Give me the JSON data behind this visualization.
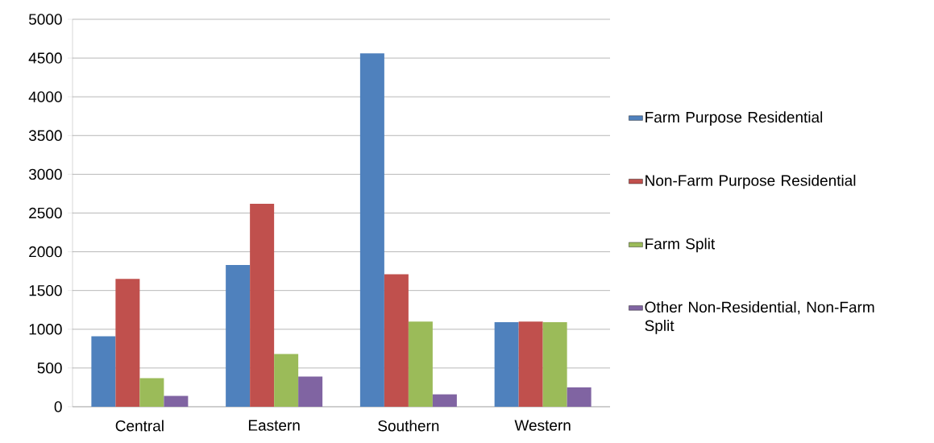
{
  "chart_data": {
    "type": "bar",
    "categories": [
      "Central",
      "Eastern",
      "Southern",
      "Western"
    ],
    "series": [
      {
        "name": "Farm Purpose Residential",
        "color": "#4f81bd",
        "values": [
          910,
          1830,
          4560,
          1090
        ]
      },
      {
        "name": "Non-Farm Purpose Residential",
        "color": "#c0504d",
        "values": [
          1650,
          2620,
          1710,
          1100
        ]
      },
      {
        "name": "Farm Split",
        "color": "#9bbb59",
        "values": [
          370,
          680,
          1100,
          1090
        ]
      },
      {
        "name": "Other Non-Residential, Non-Farm Split",
        "color": "#8064a2",
        "values": [
          140,
          390,
          160,
          250
        ]
      }
    ],
    "ylim": [
      0,
      5000
    ],
    "yticks": [
      0,
      500,
      1000,
      1500,
      2000,
      2500,
      3000,
      3500,
      4000,
      4500,
      5000
    ],
    "grid": "y",
    "legend": "right"
  }
}
